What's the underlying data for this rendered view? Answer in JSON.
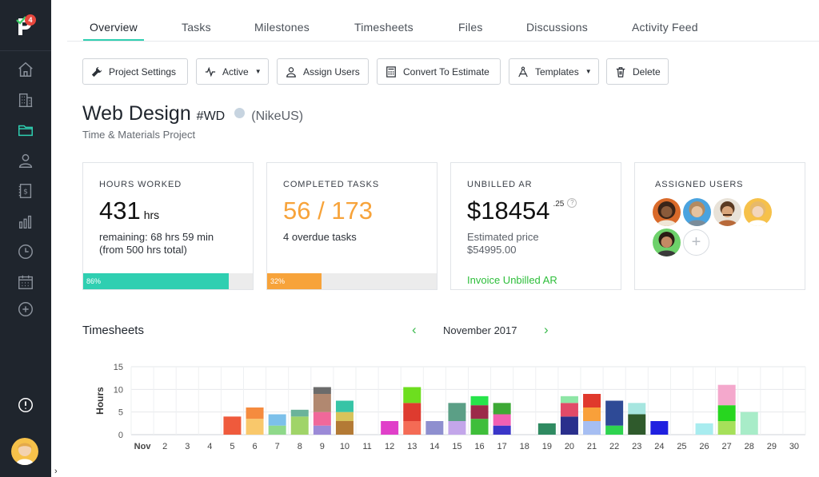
{
  "brand": {
    "badge": "4"
  },
  "sidebar": {
    "items": [
      {
        "name": "home-icon"
      },
      {
        "name": "building-icon"
      },
      {
        "name": "folder-icon",
        "active": true
      },
      {
        "name": "user-icon"
      },
      {
        "name": "invoice-icon"
      },
      {
        "name": "bar-chart-icon"
      },
      {
        "name": "clock-icon"
      },
      {
        "name": "calendar-icon"
      },
      {
        "name": "plus-circle-icon"
      },
      {
        "name": "alert-icon"
      }
    ],
    "active_color": "#2fcfb1"
  },
  "tabs": [
    {
      "label": "Overview",
      "active": true
    },
    {
      "label": "Tasks"
    },
    {
      "label": "Milestones"
    },
    {
      "label": "Timesheets"
    },
    {
      "label": "Files"
    },
    {
      "label": "Discussions"
    },
    {
      "label": "Activity Feed"
    }
  ],
  "toolbar": {
    "project_settings": "Project Settings",
    "active": "Active",
    "assign_users": "Assign Users",
    "convert": "Convert To Estimate",
    "templates": "Templates",
    "delete": "Delete"
  },
  "project": {
    "name": "Web Design",
    "code": "#WD",
    "client": "(NikeUS)",
    "type": "Time & Materials Project"
  },
  "cards": {
    "hours": {
      "label": "HOURS WORKED",
      "value": "431",
      "unit": "hrs",
      "remaining": "remaining: 68 hrs 59 min",
      "total": "(from 500 hrs total)",
      "progress": 86,
      "progress_label": "86%",
      "color": "#2fcfb1"
    },
    "tasks": {
      "label": "COMPLETED TASKS",
      "value": "56 / 173",
      "overdue": "4 overdue tasks",
      "progress": 32,
      "progress_label": "32%",
      "color": "#f7a33a"
    },
    "ar": {
      "label": "UNBILLED AR",
      "value": "$18454",
      "cents": ".25",
      "help": "?",
      "estimated_label": "Estimated price",
      "estimated_value": "$54995.00",
      "link": "Invoice Unbilled AR"
    },
    "users": {
      "label": "ASSIGNED USERS",
      "add": "+"
    }
  },
  "timesheets": {
    "title": "Timesheets",
    "month": "November 2017",
    "prev": "‹",
    "next": "›"
  },
  "chart_data": {
    "type": "bar",
    "stacked": true,
    "ylabel": "Hours",
    "ylim": [
      0,
      15
    ],
    "yticks": [
      0,
      5,
      10,
      15
    ],
    "grid": true,
    "categories": [
      "Nov",
      "2",
      "3",
      "4",
      "5",
      "6",
      "7",
      "8",
      "9",
      "10",
      "11",
      "12",
      "13",
      "14",
      "15",
      "16",
      "17",
      "18",
      "19",
      "20",
      "21",
      "22",
      "23",
      "24",
      "25",
      "26",
      "27",
      "28",
      "29",
      "30"
    ],
    "stacks": [
      [],
      [],
      [],
      [],
      [
        {
          "v": 4,
          "c": "#ef5a3c"
        }
      ],
      [
        {
          "v": 3.5,
          "c": "#f9c86b"
        },
        {
          "v": 2.5,
          "c": "#f58b3e"
        }
      ],
      [
        {
          "v": 2,
          "c": "#8fd98a"
        },
        {
          "v": 2.5,
          "c": "#7cc0ea"
        }
      ],
      [
        {
          "v": 4,
          "c": "#a0d468"
        },
        {
          "v": 1.5,
          "c": "#6bb39a"
        }
      ],
      [
        {
          "v": 2,
          "c": "#9b8ad7"
        },
        {
          "v": 3,
          "c": "#f0689a"
        },
        {
          "v": 4,
          "c": "#b18870"
        },
        {
          "v": 1.5,
          "c": "#6b6b6b"
        }
      ],
      [
        {
          "v": 3,
          "c": "#b37a35"
        },
        {
          "v": 2,
          "c": "#d7c35a"
        },
        {
          "v": 2.5,
          "c": "#36c4a6"
        }
      ],
      [],
      [
        {
          "v": 3,
          "c": "#e040c9"
        }
      ],
      [
        {
          "v": 3,
          "c": "#f46b55"
        },
        {
          "v": 4,
          "c": "#de3b2f"
        },
        {
          "v": 3.5,
          "c": "#6dde1f"
        }
      ],
      [
        {
          "v": 3,
          "c": "#8e8fcf"
        }
      ],
      [
        {
          "v": 3,
          "c": "#c3a6ea"
        },
        {
          "v": 4,
          "c": "#5b9f86"
        }
      ],
      [
        {
          "v": 3.5,
          "c": "#3fbe3a"
        },
        {
          "v": 3,
          "c": "#9c2a49"
        },
        {
          "v": 2,
          "c": "#27e44a"
        }
      ],
      [
        {
          "v": 2,
          "c": "#3a36c8"
        },
        {
          "v": 2.5,
          "c": "#f260b3"
        },
        {
          "v": 2.5,
          "c": "#3da935"
        }
      ],
      [],
      [
        {
          "v": 2.5,
          "c": "#2f8a61"
        }
      ],
      [
        {
          "v": 4,
          "c": "#2a2f8c"
        },
        {
          "v": 3,
          "c": "#e24a68"
        },
        {
          "v": 1.5,
          "c": "#8ee6a6"
        }
      ],
      [
        {
          "v": 3,
          "c": "#a6bef2"
        },
        {
          "v": 3,
          "c": "#f9a03a"
        },
        {
          "v": 3,
          "c": "#e0392c"
        }
      ],
      [
        {
          "v": 2,
          "c": "#2ed34f"
        },
        {
          "v": 5.5,
          "c": "#2e4a96"
        }
      ],
      [
        {
          "v": 4.5,
          "c": "#2f5a2c"
        },
        {
          "v": 2.5,
          "c": "#a7e6e0"
        }
      ],
      [
        {
          "v": 3,
          "c": "#2020e0"
        }
      ],
      [],
      [
        {
          "v": 2.5,
          "c": "#a8ecef"
        }
      ],
      [
        {
          "v": 3,
          "c": "#a6e05a"
        },
        {
          "v": 3.5,
          "c": "#27d61f"
        },
        {
          "v": 4.5,
          "c": "#f4a8cc"
        }
      ],
      [
        {
          "v": 5,
          "c": "#a8ecc8"
        }
      ],
      [],
      []
    ]
  }
}
